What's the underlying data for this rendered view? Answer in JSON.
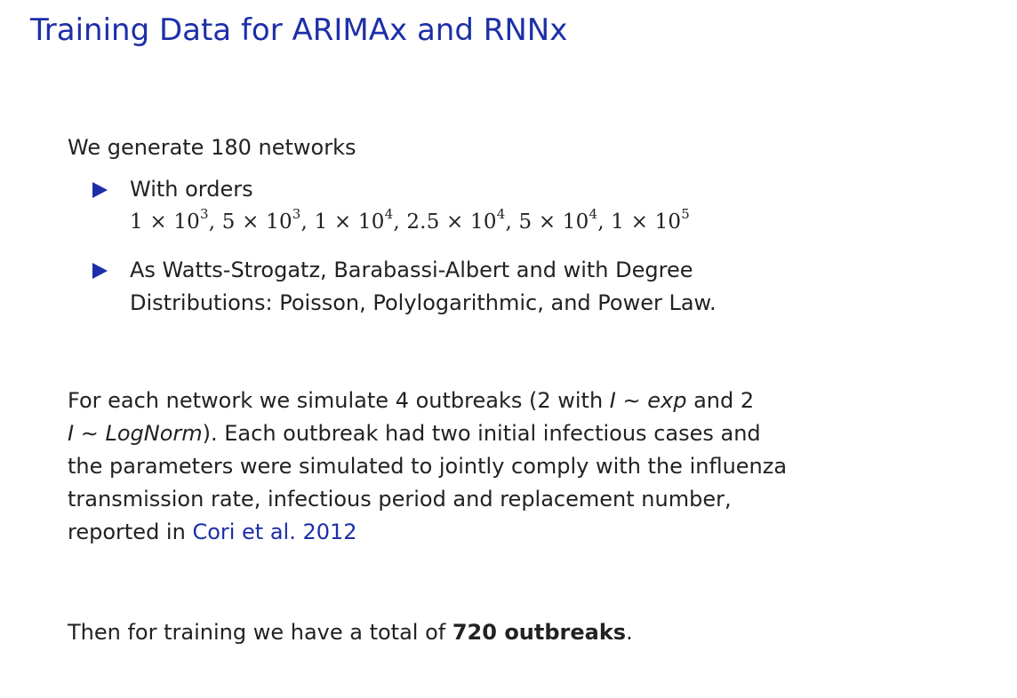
{
  "title": "Training Data for ARIMAx and RNNx",
  "intro": "We generate 180 networks",
  "bullets": {
    "orders_label": "With orders",
    "orders": [
      {
        "mant": "1",
        "exp": "3"
      },
      {
        "mant": "5",
        "exp": "3"
      },
      {
        "mant": "1",
        "exp": "4"
      },
      {
        "mant": "2.5",
        "exp": "4"
      },
      {
        "mant": "5",
        "exp": "4"
      },
      {
        "mant": "1",
        "exp": "5"
      }
    ],
    "types_line1": "As Watts-Strogatz, Barabassi-Albert and with Degree",
    "types_line2": "Distributions: Poisson, Polylogarithmic, and Power Law."
  },
  "paragraph": {
    "p1": "For each network we simulate 4 outbreaks (2 with ",
    "p1_var": "I",
    "p1_sim": " ∼ ",
    "p1_dist": "exp",
    "p1_mid": " and 2",
    "p2_var": "I",
    "p2_sim": " ∼ ",
    "p2_dist": "LogNorm",
    "p2_rest": "). Each outbreak had two initial infectious cases and",
    "line3": "the parameters were simulated to jointly comply with the influenza",
    "line4": "transmission rate, infectious period and replacement number,",
    "line5_pre": "reported in ",
    "citation": "Cori et al. 2012"
  },
  "closing": {
    "pre": "Then for training we have a total of ",
    "bold": "720 outbreaks",
    "post": "."
  }
}
